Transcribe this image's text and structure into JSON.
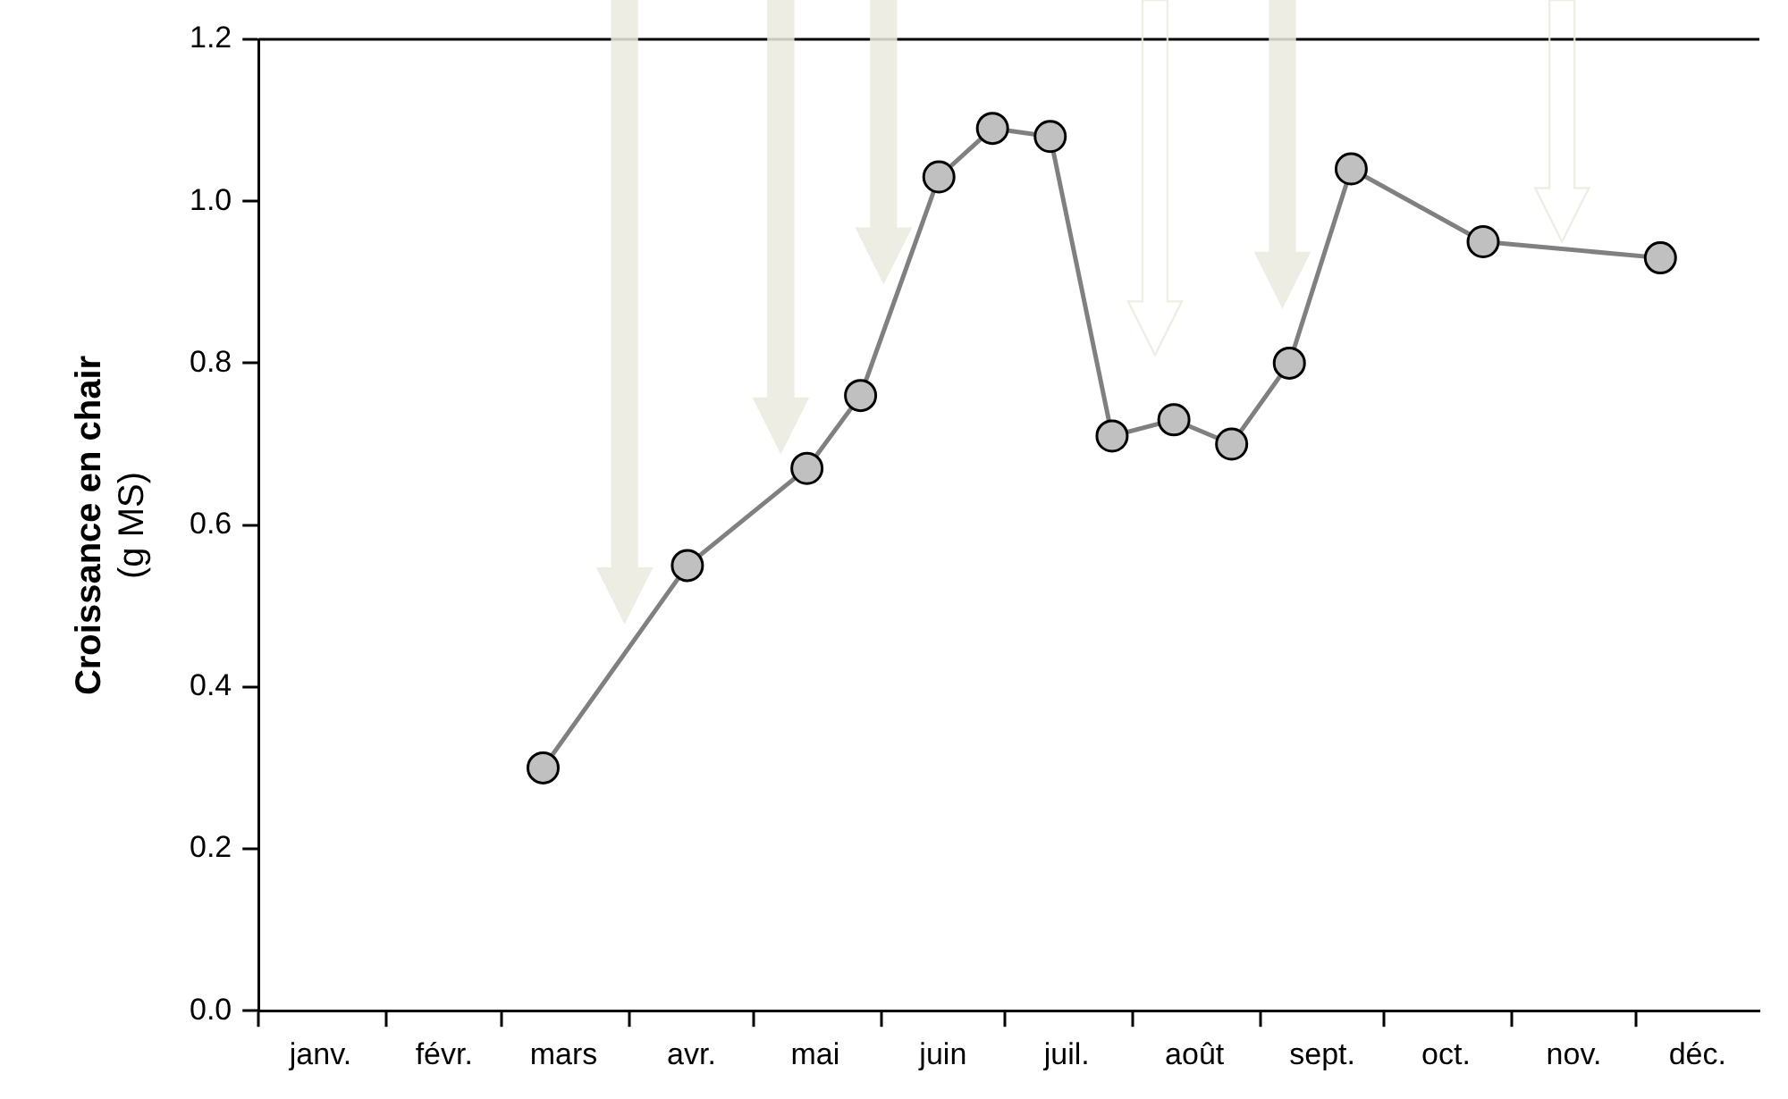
{
  "chart_data": {
    "type": "line",
    "ylabel": "Croissance en chair\n(g MS)",
    "x": [
      "--03-11",
      "--04-15",
      "--05-14",
      "--05-27",
      "--06-15",
      "--06-28",
      "--07-12",
      "--07-27",
      "--08-11",
      "--08-25",
      "--09-08",
      "--09-23",
      "--10-25",
      "--12-07"
    ],
    "series": [
      {
        "color": "#808080",
        "values": [
          0.3,
          0.55,
          0.67,
          0.76,
          1.03,
          1.09,
          1.08,
          0.71,
          0.73,
          0.7,
          0.8,
          1.04,
          0.95,
          0.93
        ]
      }
    ],
    "xlim": [
      "--01-01",
      "--12-31"
    ],
    "xticks": [
      {
        "value": "--01-01",
        "label": null
      },
      {
        "value": "--01-16",
        "label": "janv."
      },
      {
        "value": "--02-01",
        "label": null
      },
      {
        "value": "--02-15",
        "label": "févr."
      },
      {
        "value": "--03-01",
        "label": null
      },
      {
        "value": "--03-16",
        "label": "mars"
      },
      {
        "value": "--04-01",
        "label": null
      },
      {
        "value": "--04-16",
        "label": "avr."
      },
      {
        "value": "--05-01",
        "label": null
      },
      {
        "value": "--05-16",
        "label": "mai"
      },
      {
        "value": "--06-01",
        "label": null
      },
      {
        "value": "--06-16",
        "label": "juin"
      },
      {
        "value": "--07-01",
        "label": null
      },
      {
        "value": "--07-16",
        "label": "juil."
      },
      {
        "value": "--08-01",
        "label": null
      },
      {
        "value": "--08-16",
        "label": "août"
      },
      {
        "value": "--09-01",
        "label": null
      },
      {
        "value": "--09-16",
        "label": "sept."
      },
      {
        "value": "--10-01",
        "label": null
      },
      {
        "value": "--10-16",
        "label": "oct."
      },
      {
        "value": "--11-01",
        "label": null
      },
      {
        "value": "--11-16",
        "label": "nov."
      },
      {
        "value": "--12-01",
        "label": null
      },
      {
        "value": "--12-16",
        "label": "déc."
      }
    ],
    "ylim": [
      0,
      1.2
    ],
    "yticks": [
      {
        "value": 0,
        "label": "0.0"
      },
      {
        "value": 0.2,
        "label": "0.2"
      },
      {
        "value": 0.4,
        "label": "0.4"
      },
      {
        "value": 0.6,
        "label": "0.6"
      },
      {
        "value": 0.8,
        "label": "0.8"
      },
      {
        "value": 1.0,
        "label": "1.0"
      },
      {
        "value": 1.2,
        "label": "1.2"
      }
    ],
    "grid": false,
    "legend": false,
    "marker": "circle",
    "line_style": "solid"
  }
}
